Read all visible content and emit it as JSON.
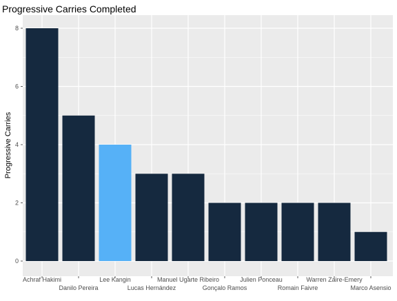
{
  "chart_data": {
    "type": "bar",
    "title": "Progressive Carries Completed",
    "xlabel": "",
    "ylabel": "Progressive Carries",
    "categories": [
      "Achraf Hakimi",
      "Danilo Pereira",
      "Lee Kangin",
      "Lucas Hernández",
      "Manuel Ugarte Ribeiro",
      "Gonçalo Ramos",
      "Julien Ponceau",
      "Romain Faivre",
      "Warren Zaire-Emery",
      "Marco Asensio"
    ],
    "values": [
      8,
      5,
      4,
      3,
      3,
      2,
      2,
      2,
      2,
      1
    ],
    "highlight_index": 2,
    "ylim": [
      0,
      8.4
    ],
    "yticks": [
      0,
      2,
      4,
      6,
      8
    ],
    "grid": true,
    "legend": "none",
    "colors": {
      "bar": "#15293f",
      "highlight": "#56b1f7",
      "panel": "#ebebeb",
      "grid": "#ffffff",
      "background": "#ffffff"
    }
  }
}
